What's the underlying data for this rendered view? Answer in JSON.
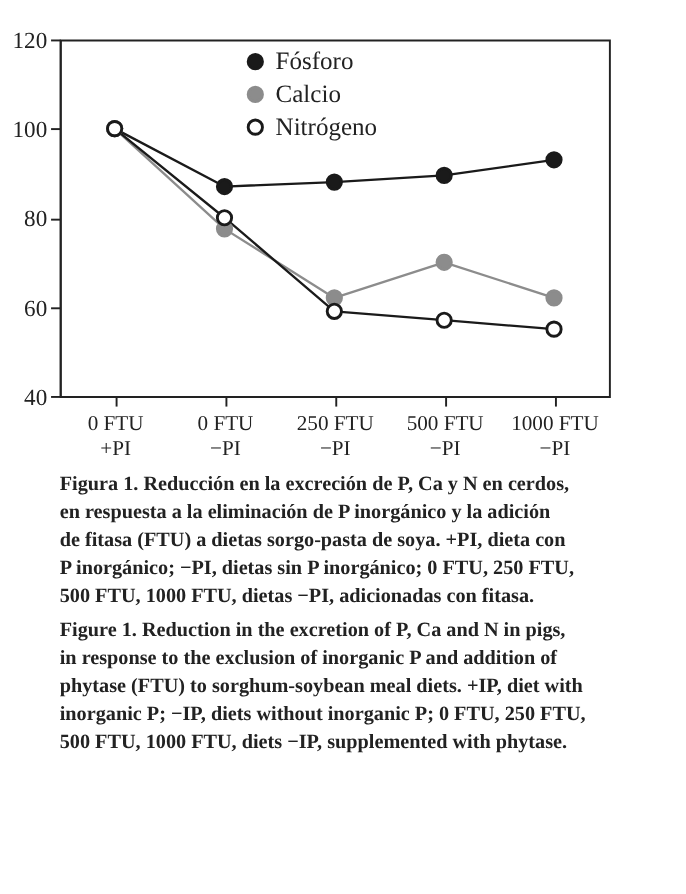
{
  "chart_data": {
    "type": "line",
    "categories": [
      "0 FTU\n+PI",
      "0 FTU\n−PI",
      "250 FTU\n−PI",
      "500 FTU\n−PI",
      "1000 FTU\n−PI"
    ],
    "series": [
      {
        "name": "Fósforo",
        "color": "#1a1a1a",
        "values": [
          100,
          87,
          88,
          89.5,
          93
        ]
      },
      {
        "name": "Calcio",
        "color": "#8c8c8c",
        "values": [
          100,
          77.5,
          62,
          70,
          62
        ]
      },
      {
        "name": "Nitrógeno",
        "color": "#1a1a1a",
        "marker": "open circle",
        "values": [
          100,
          80,
          59,
          57,
          55
        ]
      }
    ],
    "ylim": [
      40,
      120
    ],
    "yticks": [
      40,
      60,
      80,
      100,
      120
    ],
    "grid": false,
    "legend": "top",
    "marker": "circle",
    "line_style": "solid",
    "annotations": [
      "Figura 1. Reducción en la excreción de P, Ca y N en cerdos, en respuesta a la eliminación de P inorgánico y la adición de fitasa (FTU) a dietas sorgo-pasta de soya. +PI, dieta con P inorgánico; −PI, dietas sin P inorgánico; 0 FTU, 250 FTU, 500 FTU, 1000 FTU, dietas −PI, adicionadas con fitasa.",
      "Figure 1. Reduction in the excretion of P, Ca and N in pigs, in response to the exclusion of inorganic P and addition of phytase (FTU) to sorghum-soybean meal diets. +IP, diet with inorganic P; −IP, diets without inorganic P; 0 FTU, 250 FTU, 500 FTU, 1000 FTU, diets −IP, supplemented with phytase."
    ]
  }
}
